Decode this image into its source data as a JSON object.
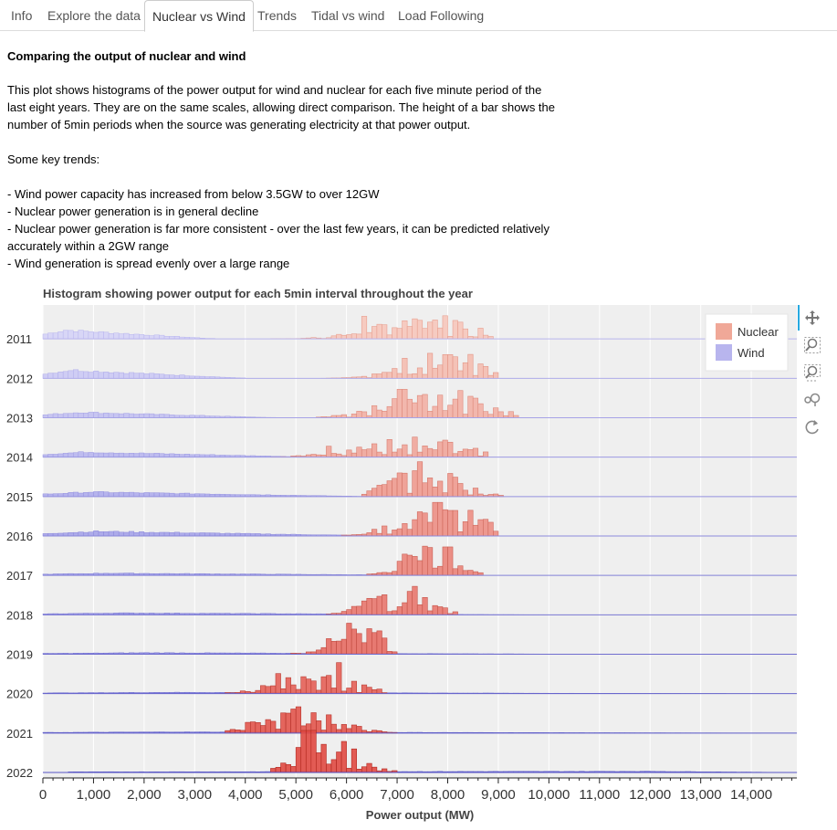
{
  "tabs": [
    {
      "label": "Info"
    },
    {
      "label": "Explore the data"
    },
    {
      "label": "Nuclear vs Wind",
      "active": true
    },
    {
      "label": "Trends"
    },
    {
      "label": "Tidal vs wind"
    },
    {
      "label": "Load Following"
    }
  ],
  "article": {
    "heading": "Comparing the output of nuclear and wind",
    "para1": "This plot shows histograms of the power output for wind and nuclear for each five minute period of the last eight years. They are on the same scales, allowing direct comparison. The height of a bar shows the number of 5min periods when the source was generating electricity at that power output.",
    "para2": "Some key trends:",
    "bullets": [
      "- Wind power capacity has increased from below 3.5GW to over 12GW",
      "- Nuclear power generation is in general decline",
      "- Nuclear power generation is far more consistent - over the last few years, it can be predicted relatively accurately within a 2GW range",
      "- Wind generation is spread evenly over a large range"
    ]
  },
  "toolbar": {
    "icons": [
      "pan-icon",
      "box-zoom-icon",
      "wheel-zoom-icon",
      "hover-icon",
      "reset-icon"
    ]
  },
  "chart_data": {
    "type": "bar",
    "title": "Histogram showing power output for each 5min interval throughout the year",
    "xlabel": "Power output (MW)",
    "ylabel": "",
    "xlim": [
      0,
      14900
    ],
    "xticks": [
      "0",
      "1,000",
      "2,000",
      "3,000",
      "4,000",
      "5,000",
      "6,000",
      "7,000",
      "8,000",
      "9,000",
      "10,000",
      "11,000",
      "12,000",
      "13,000",
      "14,000"
    ],
    "legend": {
      "position": "top-right",
      "entries": [
        "Nuclear",
        "Wind"
      ]
    },
    "colors": {
      "nuclear": "#e8735f",
      "wind": "#8e8ce0",
      "plot_bg": "#efefef"
    },
    "rows": [
      {
        "year": "2011",
        "wind": {
          "range": [
            0,
            3400
          ],
          "peak": 400,
          "height": 0.48
        },
        "nuclear": {
          "range": [
            4500,
            8900
          ],
          "peak": 7600,
          "height": 0.62,
          "spikes": [
            [
              6300,
              0.62
            ],
            [
              7300,
              0.55
            ],
            [
              7900,
              0.5
            ]
          ]
        }
      },
      {
        "year": "2012",
        "wind": {
          "range": [
            0,
            4000
          ],
          "peak": 500,
          "height": 0.45
        },
        "nuclear": {
          "range": [
            5500,
            9000
          ],
          "peak": 8000,
          "height": 0.7,
          "spikes": [
            [
              7100,
              0.55
            ],
            [
              7950,
              0.65
            ]
          ]
        }
      },
      {
        "year": "2013",
        "wind": {
          "range": [
            0,
            4600
          ],
          "peak": 700,
          "height": 0.3
        },
        "nuclear": {
          "range": [
            5400,
            9400
          ],
          "peak": 7700,
          "height": 0.78,
          "spikes": [
            [
              7050,
              0.78
            ],
            [
              7800,
              0.62
            ]
          ]
        }
      },
      {
        "year": "2014",
        "wind": {
          "range": [
            0,
            5400
          ],
          "peak": 800,
          "height": 0.28
        },
        "nuclear": {
          "range": [
            4500,
            8800
          ],
          "peak": 7200,
          "height": 0.55,
          "spikes": [
            [
              7300,
              0.55
            ],
            [
              5600,
              0.3
            ]
          ]
        }
      },
      {
        "year": "2015",
        "wind": {
          "range": [
            0,
            6500
          ],
          "peak": 900,
          "height": 0.25
        },
        "nuclear": {
          "range": [
            6300,
            9100
          ],
          "peak": 7500,
          "height": 0.85,
          "spikes": [
            [
              7400,
              0.82
            ],
            [
              8000,
              0.55
            ]
          ]
        }
      },
      {
        "year": "2016",
        "wind": {
          "range": [
            0,
            7000
          ],
          "peak": 1000,
          "height": 0.25
        },
        "nuclear": {
          "range": [
            5800,
            9000
          ],
          "peak": 7800,
          "height": 0.9,
          "spikes": [
            [
              7750,
              0.92
            ],
            [
              8050,
              0.7
            ]
          ]
        }
      },
      {
        "year": "2017",
        "wind": {
          "range": [
            0,
            8500
          ],
          "peak": 1200,
          "height": 0.12
        },
        "nuclear": {
          "range": [
            6400,
            8700
          ],
          "peak": 7500,
          "height": 0.7,
          "spikes": [
            [
              7950,
              0.78
            ]
          ]
        }
      },
      {
        "year": "2018",
        "wind": {
          "range": [
            0,
            10000
          ],
          "peak": 1500,
          "height": 0.1
        },
        "nuclear": {
          "range": [
            5600,
            8200
          ],
          "peak": 7000,
          "height": 0.7,
          "spikes": [
            [
              7300,
              0.78
            ],
            [
              6700,
              0.55
            ]
          ]
        }
      },
      {
        "year": "2019",
        "wind": {
          "range": [
            0,
            11500
          ],
          "peak": 2000,
          "height": 0.08
        },
        "nuclear": {
          "range": [
            4700,
            7000
          ],
          "peak": 6200,
          "height": 0.78,
          "spikes": [
            [
              6000,
              0.85
            ],
            [
              6400,
              0.7
            ]
          ]
        }
      },
      {
        "year": "2020",
        "wind": {
          "range": [
            0,
            13500
          ],
          "peak": 2500,
          "height": 0.07
        },
        "nuclear": {
          "range": [
            3500,
            6800
          ],
          "peak": 5300,
          "height": 0.55,
          "spikes": [
            [
              4600,
              0.55
            ],
            [
              5800,
              0.85
            ]
          ]
        }
      },
      {
        "year": "2021",
        "wind": {
          "range": [
            0,
            14200
          ],
          "peak": 2500,
          "height": 0.06
        },
        "nuclear": {
          "range": [
            3600,
            7000
          ],
          "peak": 5000,
          "height": 0.65,
          "spikes": [
            [
              5000,
              0.72
            ],
            [
              5600,
              0.5
            ]
          ]
        }
      },
      {
        "year": "2022",
        "wind": {
          "range": [
            500,
            14900
          ],
          "peak": 12000,
          "height": 0.06
        },
        "nuclear": {
          "range": [
            4500,
            7000
          ],
          "peak": 5500,
          "height": 1.1,
          "spikes": [
            [
              5150,
              1.15
            ],
            [
              5250,
              0.95
            ],
            [
              5900,
              0.85
            ]
          ]
        }
      }
    ]
  }
}
